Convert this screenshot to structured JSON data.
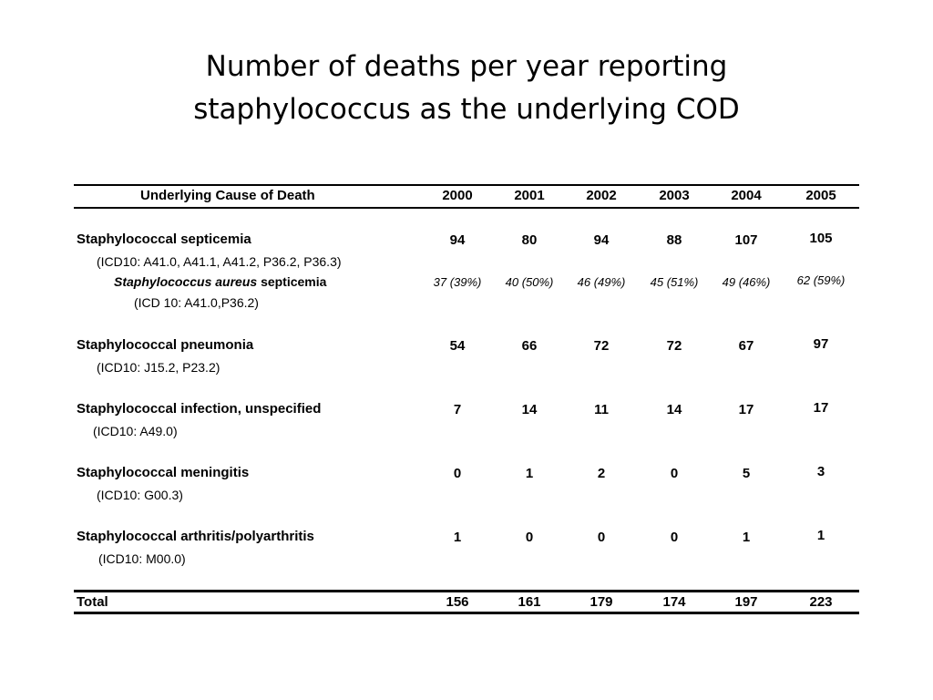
{
  "title": {
    "line1": "Number of deaths per year reporting",
    "line2": "staphylococcus as the underlying COD"
  },
  "table": {
    "header": {
      "cause": "Underlying Cause of Death",
      "years": [
        "2000",
        "2001",
        "2002",
        "2003",
        "2004",
        "2005"
      ]
    },
    "rows": [
      {
        "name": "Staphylococcal septicemia",
        "code": "(ICD10: A41.0, A41.1, A41.2, P36.2, P36.3)",
        "values": [
          "94",
          "80",
          "94",
          "88",
          "107",
          "105"
        ],
        "sub": {
          "name_italic": "Staphylococcus aureus",
          "name_rest": "septicemia",
          "code": "(ICD 10: A41.0,P36.2)",
          "values": [
            "37 (39%)",
            "40 (50%)",
            "46 (49%)",
            "45 (51%)",
            "49 (46%)",
            "62 (59%)"
          ]
        }
      },
      {
        "name": "Staphylococcal pneumonia",
        "code": "(ICD10: J15.2, P23.2)",
        "values": [
          "54",
          "66",
          "72",
          "72",
          "67",
          "97"
        ]
      },
      {
        "name": "Staphylococcal infection, unspecified",
        "code": "(ICD10: A49.0)",
        "values": [
          "7",
          "14",
          "11",
          "14",
          "17",
          "17"
        ]
      },
      {
        "name": "Staphylococcal meningitis",
        "code": "(ICD10: G00.3)",
        "values": [
          "0",
          "1",
          "2",
          "0",
          "5",
          "3"
        ]
      },
      {
        "name": "Staphylococcal arthritis/polyarthritis",
        "code": "(ICD10: M00.0)",
        "values": [
          "1",
          "0",
          "0",
          "0",
          "1",
          "1"
        ]
      }
    ],
    "total": {
      "label": "Total",
      "values": [
        "156",
        "161",
        "179",
        "174",
        "197",
        "223"
      ]
    }
  }
}
